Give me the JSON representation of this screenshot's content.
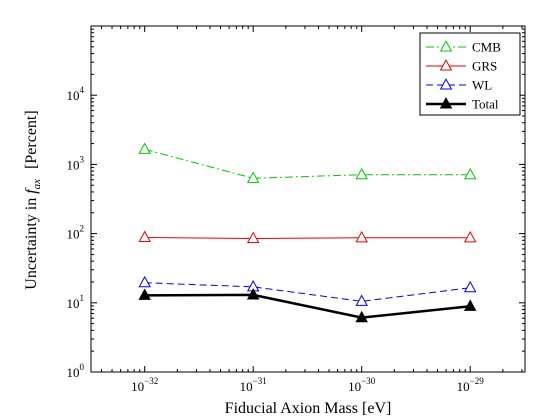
{
  "chart_data": {
    "type": "line",
    "xscale": "log",
    "yscale": "log",
    "xlim": [
      3.2e-33,
      3.2e-29
    ],
    "ylim": [
      1,
      100000
    ],
    "x": [
      1e-32,
      1e-31,
      1e-30,
      1e-29
    ],
    "x_ticks": [
      {
        "base": "10",
        "exp": "−32"
      },
      {
        "base": "10",
        "exp": "−31"
      },
      {
        "base": "10",
        "exp": "−30"
      },
      {
        "base": "10",
        "exp": "−29"
      }
    ],
    "y_ticks": [
      {
        "base": "10",
        "exp": "0"
      },
      {
        "base": "10",
        "exp": "1"
      },
      {
        "base": "10",
        "exp": "2"
      },
      {
        "base": "10",
        "exp": "3"
      },
      {
        "base": "10",
        "exp": "4"
      }
    ],
    "xlabel": "Fiducial Axion Mass [eV]",
    "ylabel_prefix": "Uncertainty in ",
    "ylabel_var": "f",
    "ylabel_sub": "ax",
    "ylabel_suffix": "[Percent]",
    "legend_position": "top-right",
    "series": [
      {
        "name": "CMB",
        "color": "#00cc00",
        "dash": "8,3,2,3",
        "marker": "triangle-open",
        "width": 1,
        "values": [
          1650,
          630,
          710,
          710
        ]
      },
      {
        "name": "GRS",
        "color": "#ee0000",
        "dash": "",
        "marker": "triangle-open",
        "width": 1,
        "values": [
          88,
          85,
          87,
          87
        ]
      },
      {
        "name": "WL",
        "color": "#0000ee",
        "dash": "7,4",
        "marker": "triangle-open",
        "width": 1,
        "values": [
          19.5,
          17,
          10.5,
          16.5
        ]
      },
      {
        "name": "Total",
        "color": "#000000",
        "dash": "",
        "marker": "triangle-filled",
        "width": 2.5,
        "values": [
          12.8,
          13,
          6.1,
          8.9
        ]
      }
    ]
  }
}
